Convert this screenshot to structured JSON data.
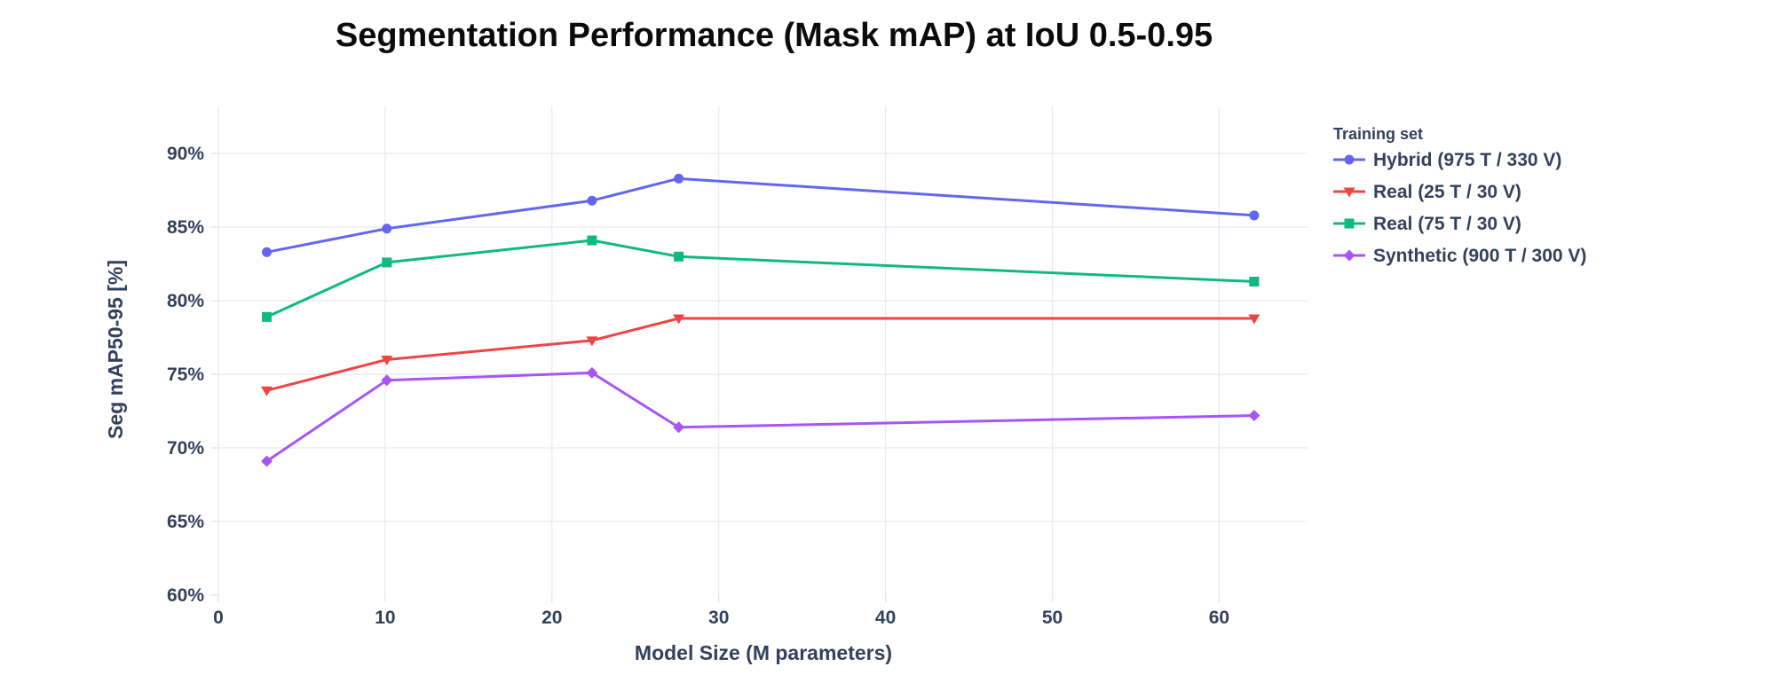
{
  "chart_data": {
    "type": "line",
    "title": "Segmentation Performance (Mask mAP) at IoU 0.5-0.95",
    "xlabel": "Model Size (M parameters)",
    "ylabel": "Seg mAP50-95 [%]",
    "legend_title": "Training set",
    "legend_position": "right-top",
    "grid": true,
    "xlim": [
      0,
      65.3
    ],
    "ylim": [
      60,
      93.2
    ],
    "x_ticks": [
      0,
      10,
      20,
      30,
      40,
      50,
      60
    ],
    "y_ticks": [
      60,
      65,
      70,
      75,
      80,
      85,
      90
    ],
    "y_tick_suffix": "%",
    "x": [
      2.9,
      10.1,
      22.4,
      27.6,
      62.1
    ],
    "series": [
      {
        "name": "Hybrid (975 T / 330 V)",
        "color": "#6366f1",
        "marker": "circle",
        "values": [
          83.3,
          84.9,
          86.8,
          88.3,
          85.8
        ]
      },
      {
        "name": "Real (25 T / 30 V)",
        "color": "#ef4444",
        "marker": "triangle-down",
        "values": [
          73.9,
          76.0,
          77.3,
          78.8,
          78.8
        ]
      },
      {
        "name": "Real (75 T / 30 V)",
        "color": "#10b981",
        "marker": "square",
        "values": [
          78.9,
          82.6,
          84.1,
          83.0,
          81.3
        ]
      },
      {
        "name": "Synthetic (900 T / 300 V)",
        "color": "#a855f7",
        "marker": "diamond",
        "values": [
          69.1,
          74.6,
          75.1,
          71.4,
          72.2
        ]
      }
    ],
    "text_color": "#33415c",
    "grid_color": "#e7eaf0",
    "background_color": "#ffffff"
  }
}
